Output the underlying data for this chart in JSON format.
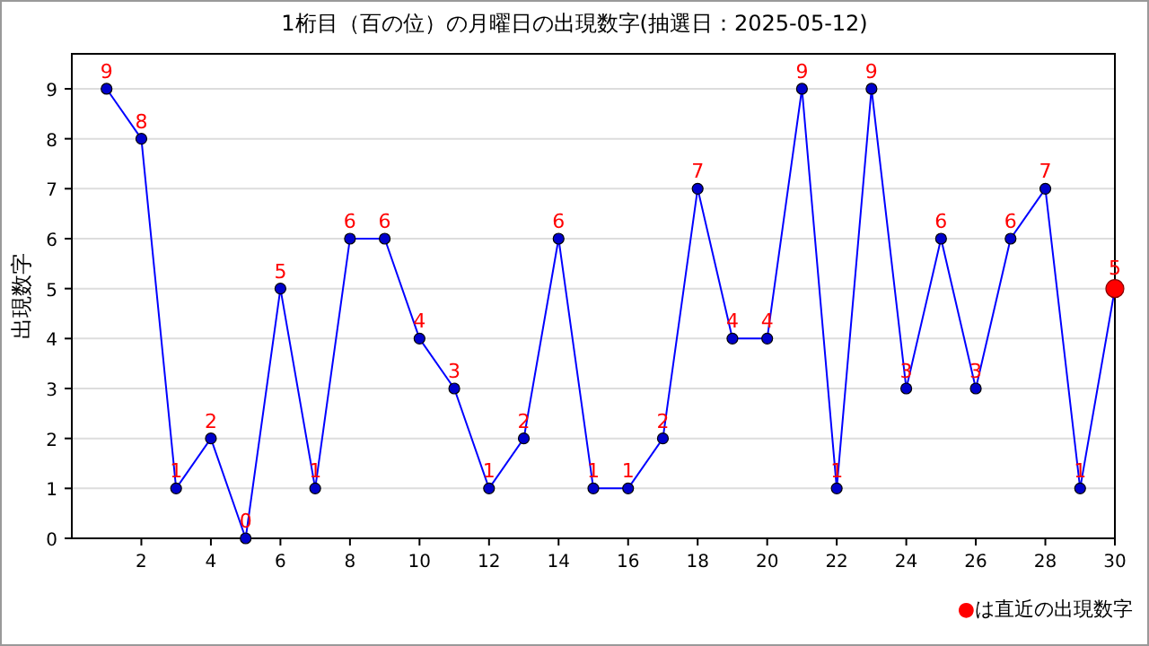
{
  "chart_data": {
    "type": "line",
    "title": "1桁目（百の位）の月曜日の出現数字(抽選日：2025-05-12)",
    "ylabel": "出現数字",
    "x": [
      1,
      2,
      3,
      4,
      5,
      6,
      7,
      8,
      9,
      10,
      11,
      12,
      13,
      14,
      15,
      16,
      17,
      18,
      19,
      20,
      21,
      22,
      23,
      24,
      25,
      26,
      27,
      28,
      29,
      30
    ],
    "series": [
      {
        "color": "#0000ff",
        "colors": [
          "#0000cc",
          "#0000cc",
          "#0000cc",
          "#0000cc",
          "#0000cc",
          "#0000cc",
          "#0000cc",
          "#0000cc",
          "#0000cc",
          "#0000cc",
          "#0000cc",
          "#0000cc",
          "#0000cc",
          "#0000cc",
          "#0000cc",
          "#0000cc",
          "#0000cc",
          "#0000cc",
          "#0000cc",
          "#0000cc",
          "#0000cc",
          "#0000cc",
          "#0000cc",
          "#0000cc",
          "#0000cc",
          "#0000cc",
          "#0000cc",
          "#0000cc",
          "#0000cc",
          "#ff0000"
        ],
        "values": [
          9,
          8,
          1,
          2,
          0,
          5,
          1,
          6,
          6,
          4,
          3,
          1,
          2,
          6,
          1,
          1,
          2,
          7,
          4,
          4,
          9,
          1,
          9,
          3,
          6,
          3,
          6,
          7,
          1,
          5
        ]
      }
    ],
    "xlim": [
      0,
      30
    ],
    "xticks": [
      2,
      4,
      6,
      8,
      10,
      12,
      14,
      16,
      18,
      20,
      22,
      24,
      26,
      28,
      30
    ],
    "ylim": [
      0,
      9.7
    ],
    "yticks": [
      0,
      1,
      2,
      3,
      4,
      5,
      6,
      7,
      8,
      9
    ],
    "grid": "y",
    "marker": "circle",
    "line_style": "solid",
    "data_labels": true,
    "annotations": [
      "●は直近の出現数字"
    ]
  }
}
